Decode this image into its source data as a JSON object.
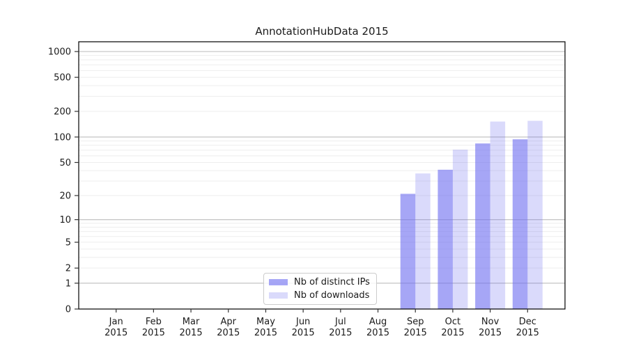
{
  "chart_data": {
    "type": "bar",
    "title": "AnnotationHubData 2015",
    "categories": [
      "Jan",
      "Feb",
      "Mar",
      "Apr",
      "May",
      "Jun",
      "Jul",
      "Aug",
      "Sep",
      "Oct",
      "Nov",
      "Dec"
    ],
    "x_tick_year": "2015",
    "series": [
      {
        "name": "Nb of distinct IPs",
        "color": "rgba(112,112,240,0.62)",
        "values": [
          0,
          0,
          0,
          0,
          0,
          0,
          0,
          0,
          21,
          41,
          84,
          94
        ]
      },
      {
        "name": "Nb of downloads",
        "color": "rgba(112,112,240,0.26)",
        "values": [
          0,
          0,
          0,
          0,
          0,
          0,
          0,
          0,
          37,
          71,
          152,
          155
        ]
      }
    ],
    "yscale": "log1p",
    "ylim": [
      0,
      1300
    ],
    "y_ticks": [
      0,
      1,
      2,
      5,
      10,
      20,
      50,
      100,
      200,
      500,
      1000
    ],
    "y_major_gridlines": [
      1,
      10,
      100,
      1000
    ],
    "y_minor_gridlines": [
      2,
      3,
      4,
      5,
      6,
      7,
      8,
      9,
      20,
      30,
      40,
      50,
      60,
      70,
      80,
      90,
      200,
      300,
      400,
      500,
      600,
      700,
      800,
      900
    ],
    "grid": true,
    "legend_position": "lower center inside",
    "colors": {
      "major_grid": "#c3c3c3",
      "minor_grid": "#ededed",
      "spine": "#000000",
      "tick": "#333333",
      "text": "#1a1a1a"
    }
  }
}
